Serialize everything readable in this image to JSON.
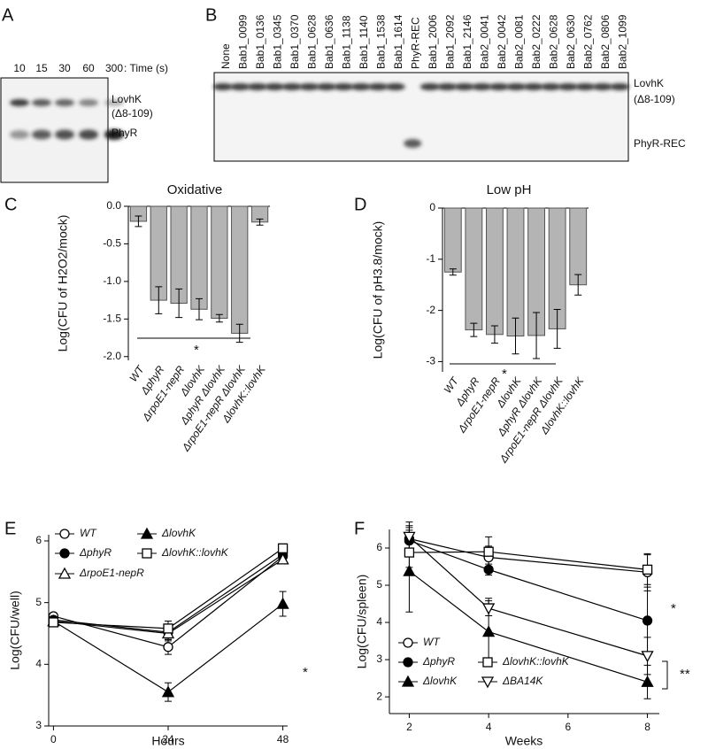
{
  "panel_labels": [
    "A",
    "B",
    "C",
    "D",
    "E",
    "F"
  ],
  "gel_a": {
    "lanes": [
      "10",
      "15",
      "30",
      "60",
      "300"
    ],
    "lane_axis_label": ": Time (s)",
    "band_labels": [
      "LovhK",
      "(Δ8-109)",
      "PhyR"
    ]
  },
  "gel_b": {
    "lanes": [
      "None",
      "Bab1_0099",
      "Bab1_0136",
      "Bab1_0345",
      "Bab1_0370",
      "Bab1_0628",
      "Bab1_0636",
      "Bab1_1138",
      "Bab1_1140",
      "Bab1_1538",
      "Bab1_1614",
      "PhyR-REC",
      "Bab1_2006",
      "Bab1_2092",
      "Bab1_2146",
      "Bab2_0041",
      "Bab2_0042",
      "Bab2_0081",
      "Bab2_0222",
      "Bab2_0628",
      "Bab2_0630",
      "Bab2_0762",
      "Bab2_0806",
      "Bab2_1099"
    ],
    "band_labels": [
      "LovhK",
      "(Δ8-109)",
      "PhyR-REC"
    ]
  },
  "chart_data": [
    {
      "type": "bar",
      "title": "Oxidative",
      "y_label": "Log(CFU of H2O2/mock)",
      "categories": [
        "WT",
        "ΔphyR",
        "ΔrpoE1-nepR",
        "ΔlovhK",
        "ΔphyR ΔlovhK",
        "ΔrpoE1-nepR ΔlovhK",
        "ΔlovhK::lovhK"
      ],
      "values": [
        -0.2,
        -1.25,
        -1.29,
        -1.37,
        -1.49,
        -1.69,
        -0.21
      ],
      "errors": [
        0.07,
        0.18,
        0.19,
        0.14,
        0.05,
        0.12,
        0.04
      ],
      "color": "#b4b4b4",
      "ylim": [
        -2.05,
        0
      ],
      "yticks": [
        {
          "value": 0,
          "label": "0.0"
        },
        -0.5,
        {
          "value": -1,
          "label": "-1.0"
        },
        -1.5,
        {
          "value": -2,
          "label": "-2.0"
        }
      ],
      "annotations": [
        "*"
      ]
    },
    {
      "type": "bar",
      "title": "Low pH",
      "y_label": "Log(CFU of pH3.8/mock)",
      "categories": [
        "WT",
        "ΔphyR",
        "ΔrpoE1-nepR",
        "ΔlovhK",
        "ΔphyR ΔlovhK",
        "ΔrpoE1-nepR ΔlovhK",
        "ΔlovhK::lovhK"
      ],
      "values": [
        -1.25,
        -2.38,
        -2.47,
        -2.5,
        -2.49,
        -2.36,
        -1.5
      ],
      "errors": [
        0.06,
        0.13,
        0.17,
        0.35,
        0.45,
        0.38,
        0.2
      ],
      "color": "#b4b4b4",
      "ylim": [
        -3.2,
        0
      ],
      "yticks": [
        0,
        -1,
        -2,
        -3
      ],
      "annotations": [
        "*"
      ]
    },
    {
      "type": "line",
      "x_label": "Hours",
      "y_label": "Log(CFU/well)",
      "x": [
        0,
        24,
        48
      ],
      "xlim": [
        -1,
        49
      ],
      "xticks": [
        0,
        24,
        48
      ],
      "ylim": [
        3,
        6.1
      ],
      "yticks": [
        3,
        4,
        5,
        6
      ],
      "series": [
        {
          "name": "WT",
          "color": "#000000",
          "marker": "circle-open",
          "values": [
            4.78,
            4.28,
            5.75
          ],
          "errors": [
            0.05,
            0.12,
            0.05
          ]
        },
        {
          "name": "ΔphyR",
          "color": "#000000",
          "marker": "circle-filled",
          "values": [
            4.72,
            4.52,
            5.78
          ],
          "errors": [
            0.05,
            0.1,
            0.05
          ]
        },
        {
          "name": "ΔrpoE1-nepR",
          "color": "#000000",
          "marker": "triangle-open",
          "values": [
            4.7,
            4.5,
            5.7
          ],
          "errors": [
            0.05,
            0.12,
            0.05
          ]
        },
        {
          "name": "ΔlovhK",
          "color": "#000000",
          "marker": "triangle-filled",
          "values": [
            4.7,
            3.55,
            4.98
          ],
          "errors": [
            0.05,
            0.15,
            0.2
          ]
        },
        {
          "name": "ΔlovhK::lovhK",
          "color": "#000000",
          "marker": "square-open",
          "values": [
            4.68,
            4.58,
            5.88
          ],
          "errors": [
            0.05,
            0.12,
            0.05
          ]
        }
      ],
      "annotations": [
        "*"
      ]
    },
    {
      "type": "line",
      "x_label": "Weeks",
      "y_label": "Log(CFU/spleen)",
      "x": [
        2,
        4,
        8
      ],
      "xlim": [
        1.5,
        8.3
      ],
      "xticks": [
        2,
        4,
        6,
        8
      ],
      "ylim": [
        1.55,
        6.5
      ],
      "yticks": [
        2,
        3,
        4,
        5,
        6
      ],
      "series": [
        {
          "name": "WT",
          "color": "#000000",
          "marker": "circle-open",
          "values": [
            6.25,
            5.75,
            5.35
          ],
          "errors": [
            0.3,
            0.3,
            0.5
          ]
        },
        {
          "name": "ΔphyR",
          "color": "#000000",
          "marker": "circle-filled",
          "values": [
            6.2,
            5.42,
            4.05
          ],
          "errors": [
            0.4,
            0.15,
            0.9
          ]
        },
        {
          "name": "ΔlovhK",
          "color": "#000000",
          "marker": "triangle-filled",
          "values": [
            5.38,
            3.75,
            2.4
          ],
          "errors": [
            1.1,
            0.9,
            0.45
          ]
        },
        {
          "name": "ΔlovhK::lovhK",
          "color": "#000000",
          "marker": "square-open",
          "values": [
            5.88,
            5.9,
            5.42
          ],
          "errors": [
            0.4,
            0.4,
            0.4
          ]
        },
        {
          "name": "ΔBA14K",
          "color": "#000000",
          "marker": "triangle-down-open",
          "values": [
            6.3,
            4.38,
            3.1
          ],
          "errors": [
            0.4,
            0.2,
            0.5
          ]
        }
      ],
      "annotations": [
        "*",
        "**"
      ]
    }
  ]
}
